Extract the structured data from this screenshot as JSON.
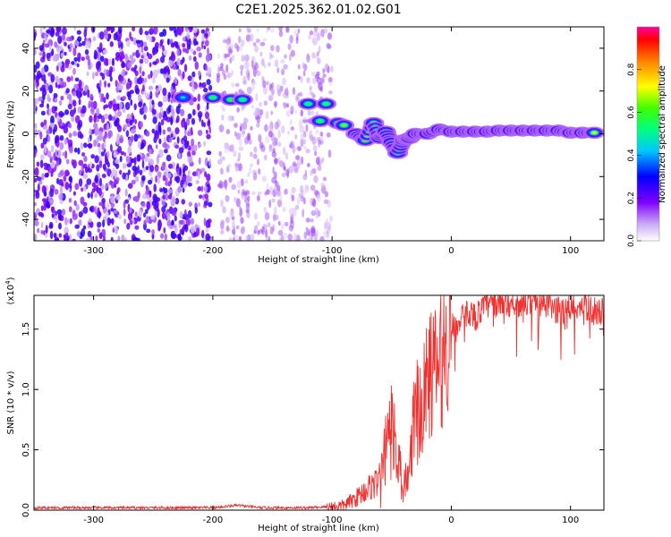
{
  "chart_data": [
    {
      "type": "heatmap",
      "title": "C2E1.2025.362.01.02.G01",
      "xlabel": "Height of straight line (km)",
      "ylabel": "Frequency (Hz)",
      "xlim": [
        -350,
        128
      ],
      "ylim": [
        -50,
        50
      ],
      "xticks": [
        -300,
        -200,
        -100,
        0,
        100
      ],
      "yticks": [
        -40,
        -20,
        0,
        20,
        40
      ],
      "colorbar": {
        "label": "Normalized spectral amplitude",
        "range": [
          0,
          1
        ],
        "ticks": [
          "0.0",
          "0.2",
          "0.4",
          "0.6",
          "0.8"
        ],
        "colors": [
          "#ffffff",
          "#c9a8f5",
          "#8000ff",
          "#0000ff",
          "#00c8ff",
          "#00ff80",
          "#40ff00",
          "#ffff00",
          "#ff8000",
          "#ff0000",
          "#ff00a0"
        ]
      },
      "noise_region": {
        "x_range": [
          -350,
          -100
        ],
        "gap_x_range": [
          -202,
          -196
        ],
        "sparse_x_range": [
          -196,
          -100
        ]
      },
      "feature_points": [
        {
          "x": -225,
          "y": 17,
          "v": 0.45
        },
        {
          "x": -200,
          "y": 17,
          "v": 0.55
        },
        {
          "x": -185,
          "y": 16,
          "v": 0.6
        },
        {
          "x": -175,
          "y": 16,
          "v": 0.5
        },
        {
          "x": -120,
          "y": 14,
          "v": 0.5
        },
        {
          "x": -105,
          "y": 14,
          "v": 0.55
        },
        {
          "x": -110,
          "y": 6,
          "v": 0.55
        },
        {
          "x": -95,
          "y": 5,
          "v": 0.6
        },
        {
          "x": -90,
          "y": 4,
          "v": 0.65
        },
        {
          "x": -80,
          "y": 0,
          "v": 0.75
        },
        {
          "x": -72,
          "y": -3,
          "v": 0.8
        },
        {
          "x": -65,
          "y": 5,
          "v": 0.7
        },
        {
          "x": -60,
          "y": -2,
          "v": 0.8
        },
        {
          "x": -55,
          "y": 1,
          "v": 0.7
        },
        {
          "x": -50,
          "y": -4,
          "v": 0.75
        },
        {
          "x": -45,
          "y": -9,
          "v": 0.6
        },
        {
          "x": -40,
          "y": -3,
          "v": 0.8
        },
        {
          "x": -35,
          "y": -2,
          "v": 0.85
        },
        {
          "x": -30,
          "y": 0,
          "v": 0.85
        },
        {
          "x": -20,
          "y": 0,
          "v": 0.85
        },
        {
          "x": -10,
          "y": 2,
          "v": 0.8
        },
        {
          "x": 0,
          "y": 1,
          "v": 0.9
        },
        {
          "x": 10,
          "y": 1,
          "v": 0.85
        },
        {
          "x": 20,
          "y": 1,
          "v": 0.8
        },
        {
          "x": 30,
          "y": 1,
          "v": 0.75
        },
        {
          "x": 40,
          "y": 1.5,
          "v": 0.75
        },
        {
          "x": 50,
          "y": 1.5,
          "v": 0.8
        },
        {
          "x": 60,
          "y": 1.5,
          "v": 0.85
        },
        {
          "x": 70,
          "y": 1.5,
          "v": 0.9
        },
        {
          "x": 80,
          "y": 1.5,
          "v": 0.95
        },
        {
          "x": 90,
          "y": 1.5,
          "v": 0.9
        },
        {
          "x": 100,
          "y": 0.5,
          "v": 0.8
        },
        {
          "x": 110,
          "y": 0.5,
          "v": 0.75
        },
        {
          "x": 120,
          "y": 0.5,
          "v": 0.7
        }
      ]
    },
    {
      "type": "line",
      "xlabel": "Height of straight line (km)",
      "ylabel": "SNR (10 * v/v)",
      "multiplier": "(x10",
      "multiplier_exp": "4",
      "multiplier_close": ")",
      "xlim": [
        -350,
        128
      ],
      "ylim": [
        0,
        1.78
      ],
      "xticks": [
        -300,
        -200,
        -100,
        0,
        100
      ],
      "yticks": [
        "0.0",
        "0.5",
        "1.0",
        "1.5"
      ],
      "color": "#ee3333",
      "series": [
        {
          "name": "SNR",
          "x": [
            -350,
            -300,
            -250,
            -200,
            -180,
            -160,
            -120,
            -100,
            -90,
            -80,
            -70,
            -60,
            -55,
            -50,
            -45,
            -40,
            -35,
            -30,
            -25,
            -20,
            -15,
            -10,
            -5,
            0,
            5,
            10,
            15,
            20,
            30,
            40,
            50,
            60,
            70,
            80,
            90,
            100,
            110,
            120,
            128
          ],
          "y": [
            0.02,
            0.02,
            0.02,
            0.02,
            0.04,
            0.02,
            0.02,
            0.03,
            0.04,
            0.1,
            0.18,
            0.25,
            0.55,
            0.75,
            0.45,
            0.25,
            0.3,
            0.95,
            0.8,
            1.1,
            1.15,
            1.2,
            1.35,
            1.55,
            1.5,
            1.6,
            1.65,
            1.6,
            1.7,
            1.72,
            1.72,
            1.72,
            1.73,
            1.7,
            1.65,
            1.68,
            1.7,
            1.65,
            1.64
          ]
        }
      ]
    }
  ]
}
